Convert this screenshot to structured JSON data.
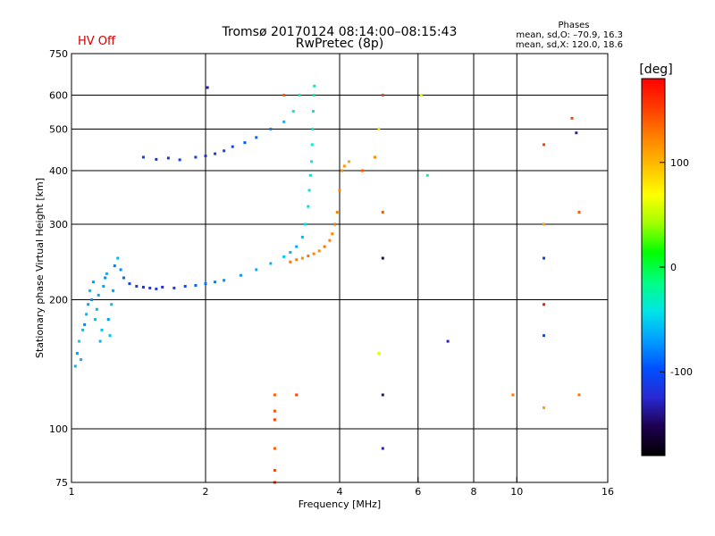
{
  "header": {
    "status": "HV Off",
    "title": "Tromsø 20170124 08:14:00–08:15:43",
    "subtitle": "RwPretec (8p)",
    "phase_title": "Phases",
    "phase_o": "mean, sd,O: –70.9, 16.3",
    "phase_x": "mean, sd,X: 120.0, 18.6",
    "status_color": "#cc0000"
  },
  "chart_data": {
    "type": "scatter",
    "title": "Tromsø 20170124 08:14:00–08:15:43",
    "subtitle": "RwPretec (8p)",
    "xlabel": "Frequency [MHz]",
    "ylabel": "Stationary phase Virtual Height [km]",
    "x_scale": "log",
    "y_scale": "log",
    "xlim": [
      1,
      16
    ],
    "ylim": [
      75,
      750
    ],
    "x_ticks": [
      1,
      2,
      4,
      6,
      8,
      10,
      16
    ],
    "x_tick_labels": [
      "1",
      "2",
      "4",
      "6",
      "8",
      "10",
      "16"
    ],
    "y_ticks": [
      75,
      100,
      200,
      300,
      400,
      500,
      600,
      750
    ],
    "y_tick_labels": [
      "75",
      "100",
      "200",
      "300",
      "400",
      "500",
      "600",
      "750"
    ],
    "x_gridlines": [
      2,
      4,
      6,
      8,
      10
    ],
    "y_gridlines": [
      100,
      200,
      300,
      400,
      500,
      600
    ],
    "grid": true,
    "colorbar": {
      "label": "[deg]",
      "min": -180,
      "max": 180,
      "ticks": [
        100,
        0,
        -100
      ],
      "tick_labels": [
        "100",
        "0",
        "-100"
      ],
      "colors": [
        "#000000",
        "#1e0050",
        "#2828d2",
        "#0050ff",
        "#00a0ff",
        "#00e6e6",
        "#00ff80",
        "#00ff00",
        "#a0ff00",
        "#ffff00",
        "#ffbe00",
        "#ff8000",
        "#ff3c00",
        "#ff0000"
      ]
    },
    "series": [
      {
        "values": [
          [
            1.02,
            140,
            -60
          ],
          [
            1.03,
            150,
            -70
          ],
          [
            1.04,
            160,
            -50
          ],
          [
            1.05,
            145,
            -60
          ],
          [
            1.06,
            170,
            -55
          ],
          [
            1.07,
            175,
            -80
          ],
          [
            1.08,
            185,
            -60
          ],
          [
            1.09,
            195,
            -70
          ],
          [
            1.1,
            210,
            -60
          ],
          [
            1.11,
            200,
            -75
          ],
          [
            1.12,
            220,
            -70
          ],
          [
            1.13,
            180,
            -55
          ],
          [
            1.14,
            190,
            -60
          ],
          [
            1.15,
            205,
            -65
          ],
          [
            1.16,
            160,
            -60
          ],
          [
            1.17,
            170,
            -55
          ],
          [
            1.18,
            215,
            -70
          ],
          [
            1.19,
            225,
            -75
          ],
          [
            1.2,
            230,
            -60
          ],
          [
            1.21,
            180,
            -70
          ],
          [
            1.22,
            165,
            -55
          ],
          [
            1.23,
            195,
            -60
          ],
          [
            1.24,
            210,
            -70
          ],
          [
            1.25,
            240,
            -80
          ],
          [
            1.27,
            250,
            -60
          ],
          [
            1.29,
            235,
            -75
          ],
          [
            1.31,
            225,
            -90
          ],
          [
            1.35,
            218,
            -110
          ],
          [
            1.4,
            215,
            -115
          ],
          [
            1.45,
            214,
            -120
          ],
          [
            1.5,
            213,
            -115
          ],
          [
            1.55,
            212,
            -110
          ],
          [
            1.6,
            214,
            -120
          ],
          [
            1.7,
            213,
            -110
          ],
          [
            1.8,
            215,
            -100
          ],
          [
            1.9,
            216,
            -90
          ],
          [
            2.0,
            218,
            -85
          ],
          [
            2.1,
            220,
            -80
          ],
          [
            2.2,
            222,
            -75
          ],
          [
            2.4,
            228,
            -70
          ],
          [
            2.6,
            235,
            -65
          ],
          [
            2.8,
            243,
            -60
          ],
          [
            3.0,
            252,
            -55
          ],
          [
            3.1,
            258,
            -60
          ],
          [
            3.2,
            266,
            -65
          ],
          [
            3.3,
            280,
            -60
          ],
          [
            3.35,
            300,
            -45
          ],
          [
            3.4,
            330,
            -45
          ],
          [
            3.42,
            360,
            -40
          ],
          [
            3.44,
            390,
            -40
          ],
          [
            3.46,
            420,
            -40
          ],
          [
            3.47,
            460,
            -35
          ],
          [
            3.48,
            500,
            -35
          ],
          [
            3.49,
            550,
            -40
          ],
          [
            3.5,
            600,
            -30
          ],
          [
            3.51,
            630,
            -35
          ],
          [
            1.45,
            430,
            -110
          ],
          [
            1.55,
            425,
            -115
          ],
          [
            1.65,
            428,
            -120
          ],
          [
            1.75,
            424,
            -110
          ],
          [
            1.9,
            430,
            -110
          ],
          [
            2.0,
            433,
            -115
          ],
          [
            2.1,
            438,
            -110
          ],
          [
            2.2,
            445,
            -105
          ],
          [
            2.3,
            455,
            -100
          ],
          [
            2.45,
            465,
            -95
          ],
          [
            2.6,
            478,
            -90
          ],
          [
            2.8,
            500,
            -80
          ],
          [
            3.0,
            520,
            -60
          ],
          [
            3.15,
            550,
            -40
          ],
          [
            3.25,
            600,
            -20
          ],
          [
            2.02,
            625,
            -130
          ]
        ]
      },
      {
        "values": [
          [
            3.1,
            245,
            130
          ],
          [
            3.2,
            248,
            125
          ],
          [
            3.3,
            250,
            120
          ],
          [
            3.4,
            253,
            130
          ],
          [
            3.5,
            256,
            125
          ],
          [
            3.6,
            260,
            120
          ],
          [
            3.7,
            266,
            130
          ],
          [
            3.8,
            275,
            125
          ],
          [
            3.85,
            285,
            120
          ],
          [
            3.9,
            300,
            130
          ],
          [
            3.95,
            320,
            125
          ],
          [
            4.0,
            360,
            125
          ],
          [
            4.05,
            400,
            120
          ],
          [
            4.1,
            410,
            115
          ],
          [
            4.2,
            420,
            110
          ]
        ]
      },
      {
        "values": [
          [
            2.86,
            75,
            150
          ],
          [
            2.86,
            80,
            150
          ],
          [
            2.86,
            90,
            140
          ],
          [
            2.86,
            105,
            150
          ],
          [
            2.86,
            110,
            145
          ],
          [
            2.86,
            120,
            140
          ],
          [
            3.0,
            600,
            140
          ],
          [
            3.2,
            120,
            150
          ],
          [
            4.5,
            400,
            140
          ],
          [
            4.8,
            430,
            120
          ],
          [
            4.9,
            500,
            80
          ],
          [
            4.9,
            150,
            60
          ],
          [
            5.0,
            600,
            150
          ],
          [
            5.0,
            320,
            140
          ],
          [
            5.0,
            250,
            -150
          ],
          [
            5.0,
            120,
            -140
          ],
          [
            5.0,
            90,
            -130
          ],
          [
            6.1,
            600,
            60
          ],
          [
            6.3,
            390,
            -20
          ],
          [
            7.0,
            160,
            -130
          ],
          [
            9.8,
            120,
            130
          ],
          [
            11.5,
            460,
            150
          ],
          [
            11.5,
            300,
            110
          ],
          [
            11.5,
            250,
            -110
          ],
          [
            11.5,
            195,
            170
          ],
          [
            11.5,
            165,
            -100
          ],
          [
            11.5,
            112,
            110
          ],
          [
            13.3,
            530,
            150
          ],
          [
            13.6,
            490,
            -130
          ],
          [
            13.8,
            320,
            140
          ],
          [
            13.8,
            120,
            130
          ]
        ]
      }
    ]
  }
}
